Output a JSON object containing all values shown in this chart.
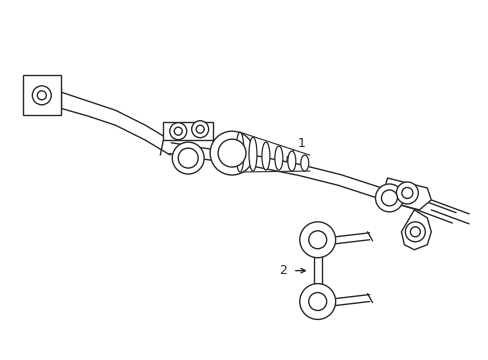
{
  "background_color": "#ffffff",
  "line_color": "#2a2a2a",
  "line_width": 1.0,
  "label1": "1",
  "label2": "2",
  "figsize": [
    4.89,
    3.6
  ],
  "dpi": 100,
  "xlim": [
    0,
    489
  ],
  "ylim": [
    0,
    360
  ]
}
